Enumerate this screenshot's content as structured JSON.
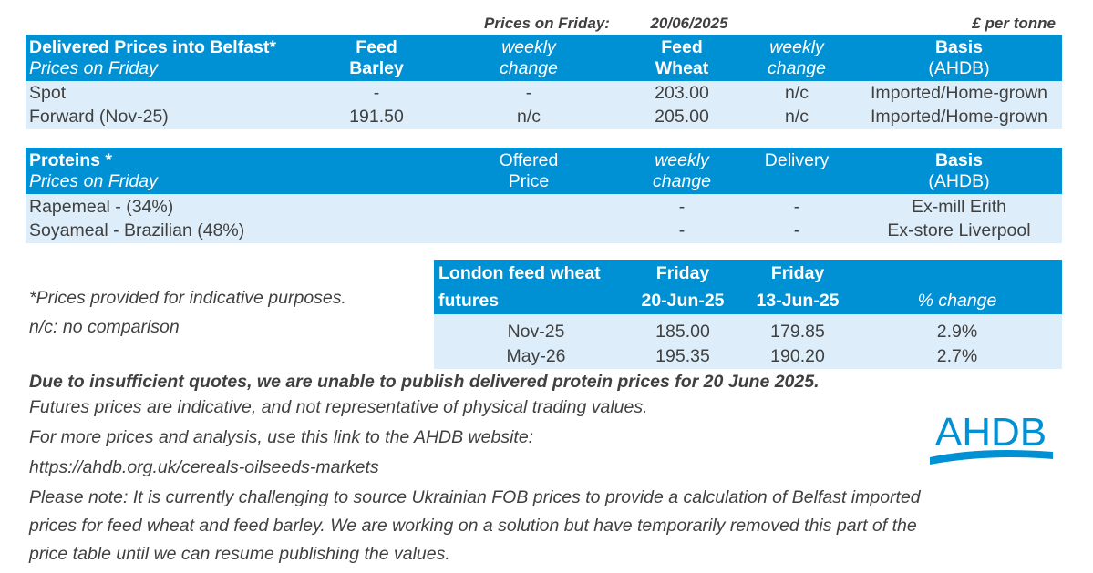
{
  "top": {
    "prices_on_friday": "Prices on Friday:",
    "date": "20/06/2025",
    "unit": "£ per tonne"
  },
  "delivered": {
    "title": "Delivered Prices into Belfast*",
    "subtitle": "Prices on Friday",
    "headers": [
      [
        "Feed",
        "Barley"
      ],
      [
        "weekly",
        "change"
      ],
      [
        "Feed",
        "Wheat"
      ],
      [
        "weekly",
        "change"
      ],
      [
        "Basis",
        "(AHDB)"
      ]
    ],
    "rows": [
      [
        "Spot",
        "-",
        "-",
        "203.00",
        "n/c",
        "Imported/Home-grown"
      ],
      [
        "Forward (Nov-25)",
        "191.50",
        "n/c",
        "205.00",
        "n/c",
        "Imported/Home-grown"
      ]
    ]
  },
  "proteins": {
    "title": "Proteins *",
    "subtitle": "Prices on Friday",
    "headers": [
      [
        "Offered",
        "Price"
      ],
      [
        "weekly",
        "change"
      ],
      [
        "Delivery",
        ""
      ],
      [
        "Basis",
        "(AHDB)"
      ]
    ],
    "rows": [
      [
        "Rapemeal - (34%)",
        "",
        "-",
        "-",
        "Ex-mill Erith"
      ],
      [
        "Soyameal - Brazilian (48%)",
        "",
        "-",
        "-",
        "Ex-store Liverpool"
      ]
    ]
  },
  "futures": {
    "title": [
      "London feed wheat",
      "futures"
    ],
    "headers": [
      [
        "Friday",
        "20-Jun-25"
      ],
      [
        "Friday",
        "13-Jun-25"
      ],
      [
        "",
        "% change"
      ]
    ],
    "rows": [
      [
        "Nov-25",
        "185.00",
        "179.85",
        "2.9%"
      ],
      [
        "May-26",
        "195.35",
        "190.20",
        "2.7%"
      ]
    ]
  },
  "notes": {
    "indicative": "*Prices provided for indicative purposes.",
    "nc": "n/c: no comparison",
    "bold": "Due to insufficient quotes, we are unable to publish delivered protein prices for 20 June 2025.",
    "lines": [
      "Futures prices are indicative, and not representative of physical trading values.",
      "For more prices and analysis, use this link to the AHDB website:",
      "https://ahdb.org.uk/cereals-oilseeds-markets",
      "Please note: It is currently challenging to source Ukrainian FOB prices to provide a calculation of Belfast imported",
      "prices for feed wheat and feed barley. We are working on a solution but have temporarily removed this part of the",
      "price table until we can resume publishing the values."
    ]
  },
  "logo": {
    "text": "AHDB",
    "color": "#0090d4"
  },
  "colors": {
    "header": "#0090d4",
    "row": "#ddeefa",
    "text": "#404040"
  }
}
